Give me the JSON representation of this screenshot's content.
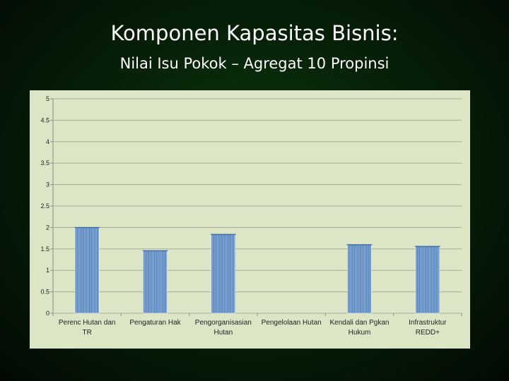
{
  "slide": {
    "title": "Komponen Kapasitas Bisnis:",
    "subtitle": "Nilai Isu Pokok – Agregat 10 Propinsi"
  },
  "chart_data": {
    "type": "bar",
    "title": "",
    "xlabel": "",
    "ylabel": "",
    "ylim": [
      0,
      5
    ],
    "y_ticks": [
      "0",
      "0.5",
      "1",
      "1.5",
      "2",
      "2.5",
      "3",
      "3.5",
      "4",
      "4.5",
      "5"
    ],
    "grid": true,
    "legend": "none",
    "categories": [
      [
        "Perenc Hutan dan",
        "TR"
      ],
      [
        "Pengaturan Hak"
      ],
      [
        "Pengorganisasian",
        "Hutan"
      ],
      [
        "Pengelolaan Hutan"
      ],
      [
        "Kendali dan Pgkan",
        "Hukum"
      ],
      [
        "Infrastruktur",
        "REDD+"
      ]
    ],
    "values": [
      2.0,
      1.46,
      1.84,
      0,
      1.6,
      1.56
    ],
    "bar_color": "#4f81bd",
    "background_color": "#dde5c7"
  }
}
